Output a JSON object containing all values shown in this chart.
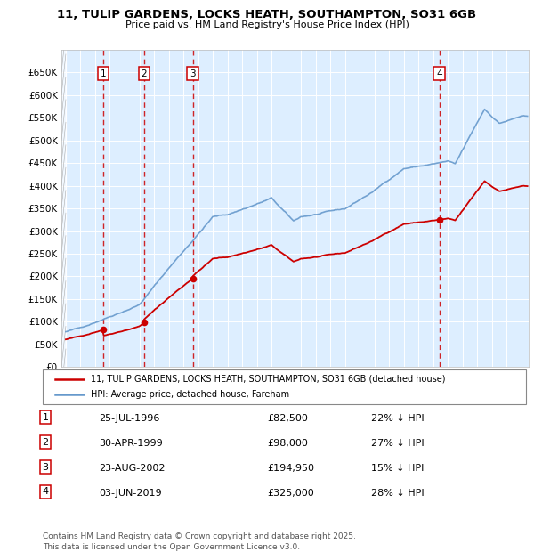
{
  "title": "11, TULIP GARDENS, LOCKS HEATH, SOUTHAMPTON, SO31 6GB",
  "subtitle": "Price paid vs. HM Land Registry's House Price Index (HPI)",
  "background_color": "#ffffff",
  "plot_bg_color": "#ddeeff",
  "grid_color": "#ffffff",
  "legend_label_red": "11, TULIP GARDENS, LOCKS HEATH, SOUTHAMPTON, SO31 6GB (detached house)",
  "legend_label_blue": "HPI: Average price, detached house, Fareham",
  "footer": "Contains HM Land Registry data © Crown copyright and database right 2025.\nThis data is licensed under the Open Government Licence v3.0.",
  "transactions": [
    {
      "num": 1,
      "date": "25-JUL-1996",
      "price": 82500,
      "pct": "22% ↓ HPI",
      "x": 1996.56
    },
    {
      "num": 2,
      "date": "30-APR-1999",
      "price": 98000,
      "pct": "27% ↓ HPI",
      "x": 1999.33
    },
    {
      "num": 3,
      "date": "23-AUG-2002",
      "price": 194950,
      "pct": "15% ↓ HPI",
      "x": 2002.64
    },
    {
      "num": 4,
      "date": "03-JUN-2019",
      "price": 325000,
      "pct": "28% ↓ HPI",
      "x": 2019.42
    }
  ],
  "ylim": [
    0,
    700000
  ],
  "xlim": [
    1993.7,
    2025.5
  ],
  "yticks": [
    0,
    50000,
    100000,
    150000,
    200000,
    250000,
    300000,
    350000,
    400000,
    450000,
    500000,
    550000,
    600000,
    650000
  ],
  "ytick_labels": [
    "£0",
    "£50K",
    "£100K",
    "£150K",
    "£200K",
    "£250K",
    "£300K",
    "£350K",
    "£400K",
    "£450K",
    "£500K",
    "£550K",
    "£600K",
    "£650K"
  ],
  "red_color": "#cc0000",
  "hpi_color": "#88aadd",
  "hpi_line_color": "#6699cc"
}
